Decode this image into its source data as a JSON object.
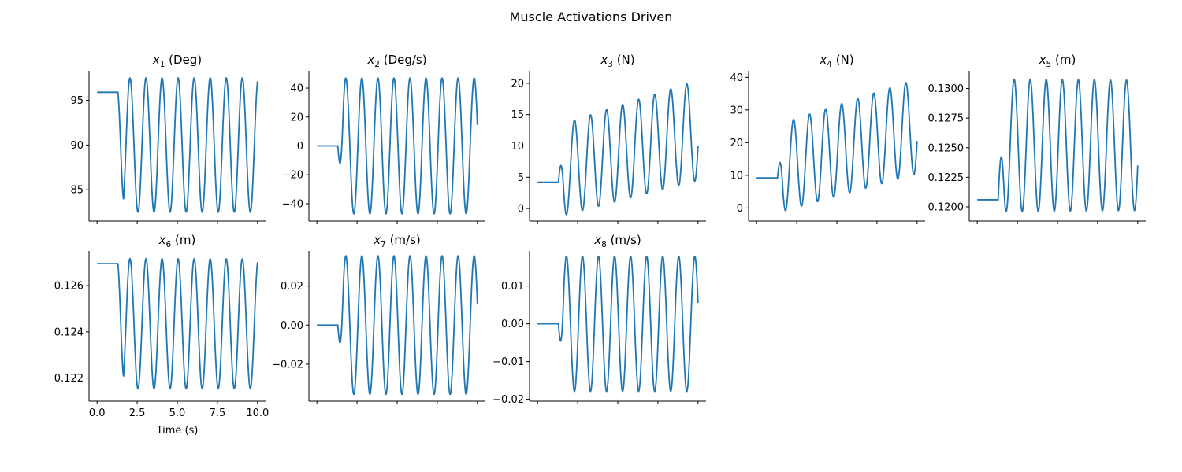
{
  "figure": {
    "title": "Muscle Activations Driven"
  },
  "colors": {
    "line": "#1f77b4"
  },
  "chart_data": [
    {
      "type": "line",
      "var": "x",
      "sub": "1",
      "unit": "(Deg)",
      "x_range": [
        0,
        10
      ],
      "ylim": [
        81.5,
        98.3
      ],
      "y_ticks": [
        85,
        90,
        95
      ],
      "y_tick_labels": [
        "85",
        "90",
        "95"
      ],
      "x_ticks": [
        0,
        2.5,
        5,
        7.5,
        10
      ],
      "x_tick_labels": [],
      "xlabel": "",
      "signal": {
        "init": 95.9,
        "onset": 1.3,
        "mean": 90.0,
        "amp0": 7.5,
        "amp1": 7.5,
        "period": 1.0,
        "phase": 0.5
      }
    },
    {
      "type": "line",
      "var": "x",
      "sub": "2",
      "unit": "(Deg/s)",
      "x_range": [
        0,
        10
      ],
      "ylim": [
        -52,
        52
      ],
      "y_ticks": [
        -40,
        -20,
        0,
        20,
        40
      ],
      "y_tick_labels": [
        "−40",
        "−20",
        "0",
        "20",
        "40"
      ],
      "x_ticks": [
        0,
        2.5,
        5,
        7.5,
        10
      ],
      "x_tick_labels": [],
      "xlabel": "",
      "signal": {
        "init": 0,
        "onset": 1.3,
        "mean": 0,
        "amp0": 47,
        "amp1": 47,
        "period": 1.0,
        "phase": 0.75
      }
    },
    {
      "type": "line",
      "var": "x",
      "sub": "3",
      "unit": "(N)",
      "x_range": [
        0,
        10
      ],
      "ylim": [
        -2,
        22
      ],
      "y_ticks": [
        0,
        5,
        10,
        15,
        20
      ],
      "y_tick_labels": [
        "0",
        "5",
        "10",
        "15",
        "20"
      ],
      "x_ticks": [
        0,
        2.5,
        5,
        7.5,
        10
      ],
      "x_tick_labels": [],
      "xlabel": "",
      "signal": {
        "init": 4.2,
        "onset": 1.3,
        "mean": 6.0,
        "amp0": 7.3,
        "amp1": 8.0,
        "mean1": 12.5,
        "period": 1.0,
        "phase": 0.25
      }
    },
    {
      "type": "line",
      "var": "x",
      "sub": "4",
      "unit": "(N)",
      "x_range": [
        0,
        10
      ],
      "ylim": [
        -4,
        42
      ],
      "y_ticks": [
        0,
        10,
        20,
        30,
        40
      ],
      "y_tick_labels": [
        "0",
        "10",
        "20",
        "30",
        "40"
      ],
      "x_ticks": [
        0,
        2.5,
        5,
        7.5,
        10
      ],
      "x_tick_labels": [],
      "xlabel": "",
      "signal": {
        "init": 9.2,
        "onset": 1.3,
        "mean": 12.0,
        "amp0": 13.5,
        "amp1": 14.5,
        "mean1": 25.0,
        "period": 1.0,
        "phase": 0.25
      }
    },
    {
      "type": "line",
      "var": "x",
      "sub": "5",
      "unit": "(m)",
      "x_range": [
        0,
        10
      ],
      "ylim": [
        0.1188,
        0.1315
      ],
      "y_ticks": [
        0.12,
        0.1225,
        0.125,
        0.1275,
        0.13
      ],
      "y_tick_labels": [
        "0.1200",
        "0.1225",
        "0.1250",
        "0.1275",
        "0.1300"
      ],
      "x_ticks": [
        0,
        2.5,
        5,
        7.5,
        10
      ],
      "x_tick_labels": [],
      "xlabel": "",
      "signal": {
        "init": 0.1206,
        "onset": 1.3,
        "mean": 0.1252,
        "amp0": 0.0056,
        "amp1": 0.0055,
        "period": 1.0,
        "phase": 0.25
      }
    },
    {
      "type": "line",
      "var": "x",
      "sub": "6",
      "unit": "(m)",
      "x_range": [
        0,
        10
      ],
      "ylim": [
        0.121,
        0.1275
      ],
      "y_ticks": [
        0.122,
        0.124,
        0.126
      ],
      "y_tick_labels": [
        "0.122",
        "0.124",
        "0.126"
      ],
      "x_ticks": [
        0,
        2.5,
        5,
        7.5,
        10
      ],
      "x_tick_labels": [
        "0.0",
        "2.5",
        "5.0",
        "7.5",
        "10.0"
      ],
      "xlabel": "Time (s)",
      "signal": {
        "init": 0.12695,
        "onset": 1.3,
        "mean": 0.12435,
        "amp0": 0.00282,
        "amp1": 0.0028,
        "period": 1.0,
        "phase": 0.5,
        "drift": -1.2e-06
      }
    },
    {
      "type": "line",
      "var": "x",
      "sub": "7",
      "unit": "(m/s)",
      "x_range": [
        0,
        10
      ],
      "ylim": [
        -0.039,
        0.038
      ],
      "y_ticks": [
        -0.02,
        0,
        0.02
      ],
      "y_tick_labels": [
        "−0.02",
        "0.00",
        "0.02"
      ],
      "x_ticks": [
        0,
        2.5,
        5,
        7.5,
        10
      ],
      "x_tick_labels": [],
      "xlabel": "",
      "signal": {
        "init": 0.0,
        "onset": 1.3,
        "mean": 0.0,
        "amp0": 0.0355,
        "amp1": 0.0355,
        "period": 1.0,
        "phase": 0.75
      }
    },
    {
      "type": "line",
      "var": "x",
      "sub": "8",
      "unit": "(m/s)",
      "x_range": [
        0,
        10
      ],
      "ylim": [
        -0.0205,
        0.0193
      ],
      "y_ticks": [
        -0.02,
        -0.01,
        0,
        0.01
      ],
      "y_tick_labels": [
        "−0.02",
        "−0.01",
        "0.00",
        "0.01"
      ],
      "x_ticks": [
        0,
        2.5,
        5,
        7.5,
        10
      ],
      "x_tick_labels": [],
      "xlabel": "",
      "signal": {
        "init": 0.0,
        "onset": 1.3,
        "mean": 0.0,
        "amp0": 0.0179,
        "amp1": 0.0179,
        "period": 1.0,
        "phase": 0.75
      }
    }
  ]
}
